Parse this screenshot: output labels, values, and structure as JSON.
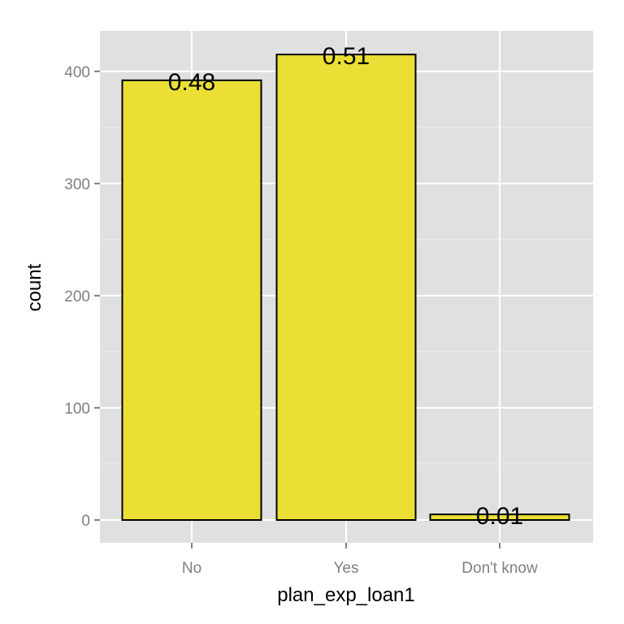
{
  "chart_data": {
    "type": "bar",
    "categories": [
      "No",
      "Yes",
      "Don't know"
    ],
    "values": [
      392,
      415,
      5
    ],
    "data_labels": [
      "0.48",
      "0.51",
      "0.01"
    ],
    "title": "",
    "xlabel": "plan_exp_loan1",
    "ylabel": "count",
    "ylim": [
      0,
      400
    ],
    "y_ticks": [
      0,
      100,
      200,
      300,
      400
    ],
    "grid": true,
    "legend": "none",
    "colors": {
      "bar_fill": "#ebdf35",
      "bar_stroke": "#000000",
      "panel_background": "#e0e0e0",
      "grid_major": "#ffffff",
      "grid_minor": "#ececec",
      "tick_text": "#7f7f7f",
      "axis_title_text": "#000000"
    }
  }
}
